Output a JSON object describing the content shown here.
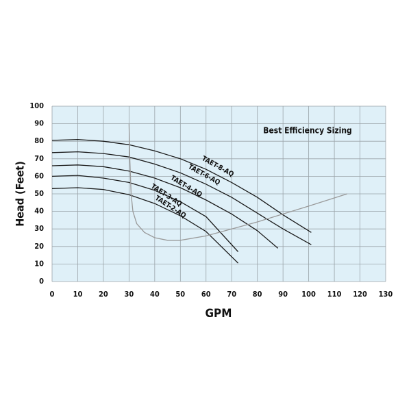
{
  "chart_data": {
    "type": "line",
    "xlabel": "GPM",
    "ylabel": "Head (Feet)",
    "annotation": "Best Efficiency Sizing",
    "xlim": [
      0,
      130
    ],
    "xticks": [
      0,
      10,
      20,
      30,
      40,
      50,
      60,
      70,
      80,
      90,
      100,
      110,
      120,
      130
    ],
    "ylim": [
      0,
      100
    ],
    "yticks": [
      0,
      10,
      20,
      30,
      40,
      50,
      60,
      70,
      80,
      90,
      100
    ],
    "grid": true,
    "background": "#dff0f8",
    "series": [
      {
        "name": "TAET-8-AQ",
        "color": "#1a1a1a",
        "x": [
          0,
          10,
          20,
          30,
          40,
          50,
          60,
          70,
          80,
          90,
          101
        ],
        "values": [
          80.5,
          81,
          80,
          78,
          74.5,
          70,
          64,
          56.5,
          48,
          38,
          28
        ]
      },
      {
        "name": "TAET-6-AQ",
        "color": "#1a1a1a",
        "x": [
          0,
          10,
          20,
          30,
          40,
          50,
          60,
          70,
          80,
          90,
          101
        ],
        "values": [
          73.5,
          74,
          73,
          71,
          67,
          62,
          55.5,
          48,
          39,
          30,
          21
        ]
      },
      {
        "name": "TAET-4-AQ",
        "color": "#1a1a1a",
        "x": [
          0,
          10,
          20,
          30,
          40,
          50,
          60,
          70,
          80,
          88
        ],
        "values": [
          66,
          66.5,
          65.5,
          63,
          59,
          53.5,
          46.5,
          38.5,
          29,
          19
        ]
      },
      {
        "name": "TAET-3-AQ",
        "color": "#1a1a1a",
        "x": [
          0,
          10,
          20,
          30,
          40,
          50,
          60,
          72.5
        ],
        "values": [
          60,
          60.5,
          59,
          56.5,
          52,
          45.5,
          37,
          17
        ]
      },
      {
        "name": "TAET-2-AQ",
        "color": "#1a1a1a",
        "x": [
          0,
          10,
          20,
          30,
          40,
          50,
          60,
          72.5
        ],
        "values": [
          53,
          53.5,
          52.5,
          49.5,
          44.5,
          37.5,
          28.5,
          10.5
        ]
      },
      {
        "color": "#9a9a9a",
        "x": [
          30,
          30.3,
          30.8,
          31.5,
          33,
          36,
          40,
          45,
          50,
          60,
          70,
          80,
          90,
          100,
          115
        ],
        "values": [
          90,
          70,
          50,
          40,
          33,
          28,
          25,
          23.5,
          23.5,
          26,
          30,
          34,
          38.5,
          43,
          50
        ]
      }
    ]
  }
}
